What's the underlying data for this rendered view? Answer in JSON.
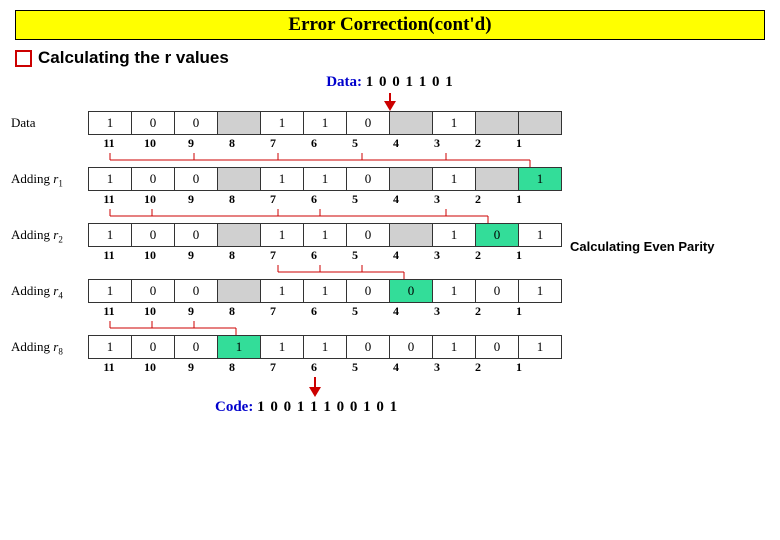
{
  "title": "Error Correction(cont'd)",
  "subtitle": "Calculating the r values",
  "data_label": "Data:",
  "data_value": "1 0 0 1 1 0 1",
  "code_label": "Code:",
  "code_value": "1 0 0 1 1 1 0 0 1 0 1",
  "side_label": "Calculating Even Parity",
  "positions": [
    "11",
    "10",
    "9",
    "8",
    "7",
    "6",
    "5",
    "4",
    "3",
    "2",
    "1"
  ],
  "colors": {
    "gray": "#d0d0d0",
    "teal": "#33dd99",
    "red": "#cc0000",
    "blue": "#0000cc"
  },
  "rows": [
    {
      "label": "Data",
      "cells": [
        {
          "v": "1"
        },
        {
          "v": "0"
        },
        {
          "v": "0"
        },
        {
          "v": "",
          "c": "gray"
        },
        {
          "v": "1"
        },
        {
          "v": "1"
        },
        {
          "v": "0"
        },
        {
          "v": "",
          "c": "gray"
        },
        {
          "v": "1"
        },
        {
          "v": "",
          "c": "gray"
        },
        {
          "v": "",
          "c": "gray"
        }
      ],
      "conn_after": [
        [
          0,
          10
        ],
        [
          2,
          10
        ],
        [
          4,
          10
        ],
        [
          6,
          10
        ],
        [
          8,
          10
        ]
      ]
    },
    {
      "label_html": "Adding <i>r</i><sub>1</sub>",
      "cells": [
        {
          "v": "1"
        },
        {
          "v": "0"
        },
        {
          "v": "0"
        },
        {
          "v": "",
          "c": "gray"
        },
        {
          "v": "1"
        },
        {
          "v": "1"
        },
        {
          "v": "0"
        },
        {
          "v": "",
          "c": "gray"
        },
        {
          "v": "1"
        },
        {
          "v": "",
          "c": "gray"
        },
        {
          "v": "1",
          "c": "teal"
        }
      ],
      "conn_after": [
        [
          0,
          9
        ],
        [
          1,
          9
        ],
        [
          4,
          9
        ],
        [
          5,
          9
        ],
        [
          8,
          9
        ]
      ]
    },
    {
      "label_html": "Adding <i>r</i><sub>2</sub>",
      "cells": [
        {
          "v": "1"
        },
        {
          "v": "0"
        },
        {
          "v": "0"
        },
        {
          "v": "",
          "c": "gray"
        },
        {
          "v": "1"
        },
        {
          "v": "1"
        },
        {
          "v": "0"
        },
        {
          "v": "",
          "c": "gray"
        },
        {
          "v": "1"
        },
        {
          "v": "0",
          "c": "teal"
        },
        {
          "v": "1"
        }
      ],
      "conn_after": [
        [
          4,
          7
        ],
        [
          5,
          7
        ],
        [
          6,
          7
        ]
      ]
    },
    {
      "label_html": "Adding <i>r</i><sub>4</sub>",
      "cells": [
        {
          "v": "1"
        },
        {
          "v": "0"
        },
        {
          "v": "0"
        },
        {
          "v": "",
          "c": "gray"
        },
        {
          "v": "1"
        },
        {
          "v": "1"
        },
        {
          "v": "0"
        },
        {
          "v": "0",
          "c": "teal"
        },
        {
          "v": "1"
        },
        {
          "v": "0"
        },
        {
          "v": "1"
        }
      ],
      "conn_after": [
        [
          0,
          3
        ],
        [
          1,
          3
        ],
        [
          2,
          3
        ]
      ]
    },
    {
      "label_html": "Adding <i>r</i><sub>8</sub>",
      "cells": [
        {
          "v": "1"
        },
        {
          "v": "0"
        },
        {
          "v": "0"
        },
        {
          "v": "1",
          "c": "teal"
        },
        {
          "v": "1"
        },
        {
          "v": "1"
        },
        {
          "v": "0"
        },
        {
          "v": "0"
        },
        {
          "v": "1"
        },
        {
          "v": "0"
        },
        {
          "v": "1"
        }
      ]
    }
  ]
}
